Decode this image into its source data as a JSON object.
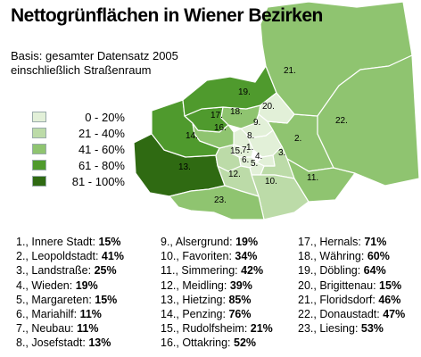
{
  "title": "Nettogrünflächen in Wiener Bezirken",
  "subtitle": [
    "Basis: gesamter Datensatz 2005",
    "einschließlich Straßenraum"
  ],
  "legend": [
    {
      "label": "0 - 20%",
      "color": "#e2f0d8"
    },
    {
      "label": "21 - 40%",
      "color": "#bcdba8"
    },
    {
      "label": "41 - 60%",
      "color": "#8fc470"
    },
    {
      "label": "61 - 80%",
      "color": "#4f9a2d"
    },
    {
      "label": "81 - 100%",
      "color": "#2f6a12"
    }
  ],
  "districts": [
    {
      "id": 1,
      "label": "1.",
      "name": "Innere Stadt",
      "value": "15%",
      "pct": 15
    },
    {
      "id": 2,
      "label": "2.",
      "name": "Leopoldstadt",
      "value": "41%",
      "pct": 41
    },
    {
      "id": 3,
      "label": "3.",
      "name": "Landstraße",
      "value": "25%",
      "pct": 25
    },
    {
      "id": 4,
      "label": "4.",
      "name": "Wieden",
      "value": "19%",
      "pct": 19
    },
    {
      "id": 5,
      "label": "5.",
      "name": "Margareten",
      "value": "15%",
      "pct": 15
    },
    {
      "id": 6,
      "label": "6.",
      "name": "Mariahilf",
      "value": "11%",
      "pct": 11
    },
    {
      "id": 7,
      "label": "7.",
      "name": "Neubau",
      "value": "11%",
      "pct": 11
    },
    {
      "id": 8,
      "label": "8.",
      "name": "Josefstadt",
      "value": "13%",
      "pct": 13
    },
    {
      "id": 9,
      "label": "9.",
      "name": "Alsergrund",
      "value": "19%",
      "pct": 19
    },
    {
      "id": 10,
      "label": "10.",
      "name": "Favoriten",
      "value": "34%",
      "pct": 34
    },
    {
      "id": 11,
      "label": "11.",
      "name": "Simmering",
      "value": "42%",
      "pct": 42
    },
    {
      "id": 12,
      "label": "12.",
      "name": "Meidling",
      "value": "39%",
      "pct": 39
    },
    {
      "id": 13,
      "label": "13.",
      "name": "Hietzing",
      "value": "85%",
      "pct": 85
    },
    {
      "id": 14,
      "label": "14.",
      "name": "Penzing",
      "value": "76%",
      "pct": 76
    },
    {
      "id": 15,
      "label": "15.",
      "name": "Rudolfsheim",
      "value": "21%",
      "pct": 21
    },
    {
      "id": 16,
      "label": "16.",
      "name": "Ottakring",
      "value": "52%",
      "pct": 52
    },
    {
      "id": 17,
      "label": "17.",
      "name": "Hernals",
      "value": "71%",
      "pct": 71
    },
    {
      "id": 18,
      "label": "18.",
      "name": "Währing",
      "value": "60%",
      "pct": 60
    },
    {
      "id": 19,
      "label": "19.",
      "name": "Döbling",
      "value": "64%",
      "pct": 64
    },
    {
      "id": 20,
      "label": "20.",
      "name": "Brigittenau",
      "value": "15%",
      "pct": 15
    },
    {
      "id": 21,
      "label": "21.",
      "name": "Floridsdorf",
      "value": "46%",
      "pct": 46
    },
    {
      "id": 22,
      "label": "22.",
      "name": "Donaustadt",
      "value": "47%",
      "pct": 47
    },
    {
      "id": 23,
      "label": "23.",
      "name": "Liesing",
      "value": "53%",
      "pct": 53
    }
  ]
}
